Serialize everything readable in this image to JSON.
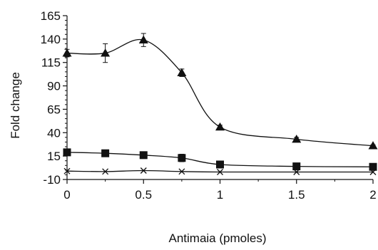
{
  "chart_data": {
    "type": "line",
    "xlabel": "Antimaia (pmoles)",
    "ylabel": "Fold change",
    "xlim": [
      0,
      2
    ],
    "ylim": [
      -10,
      165
    ],
    "x_ticks": [
      {
        "value": 0,
        "label": "0"
      },
      {
        "value": 0.5,
        "label": "0.5"
      },
      {
        "value": 1,
        "label": "1"
      },
      {
        "value": 1.5,
        "label": "1.5"
      },
      {
        "value": 2,
        "label": "2"
      }
    ],
    "y_ticks": [
      {
        "value": -10,
        "label": "-10"
      },
      {
        "value": 15,
        "label": "15"
      },
      {
        "value": 40,
        "label": "40"
      },
      {
        "value": 65,
        "label": "65"
      },
      {
        "value": 90,
        "label": "90"
      },
      {
        "value": 115,
        "label": "115"
      },
      {
        "value": 140,
        "label": "140"
      },
      {
        "value": 165,
        "label": "165"
      }
    ],
    "series": [
      {
        "marker": "triangle",
        "color": "#111111",
        "x": [
          0,
          0.25,
          0.5,
          0.75,
          1,
          1.5,
          2
        ],
        "y": [
          125,
          125,
          139,
          104,
          46,
          33,
          26
        ],
        "error": [
          4,
          10,
          7,
          4,
          2,
          2,
          1
        ]
      },
      {
        "marker": "square",
        "color": "#111111",
        "x": [
          0,
          0.25,
          0.5,
          0.75,
          1,
          1.5,
          2
        ],
        "y": [
          19,
          18,
          16,
          13,
          6,
          4,
          3.5
        ],
        "error": [
          2,
          2,
          1,
          4,
          1,
          1,
          1
        ]
      },
      {
        "marker": "cross",
        "color": "#111111",
        "x": [
          0,
          0.25,
          0.5,
          0.75,
          1,
          1.5,
          2
        ],
        "y": [
          -1,
          -1.5,
          -0.5,
          -1.5,
          -2,
          -2,
          -2
        ],
        "error": [
          0,
          0,
          0,
          0,
          0,
          0,
          0
        ]
      }
    ]
  }
}
